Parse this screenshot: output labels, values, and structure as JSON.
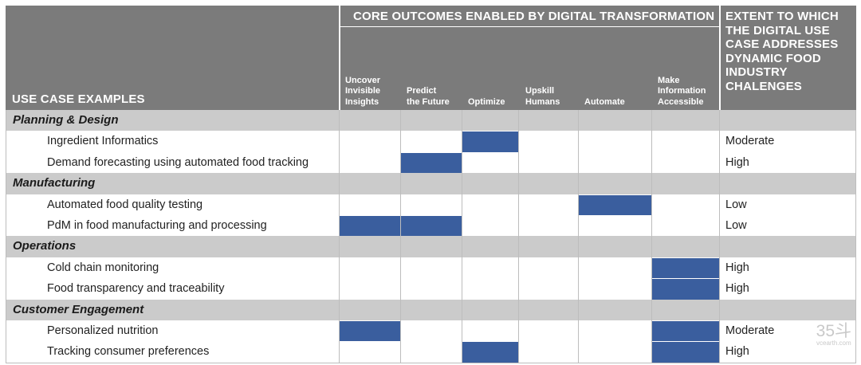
{
  "header": {
    "use_case_col": "USE CASE EXAMPLES",
    "core_title": "CORE OUTCOMES ENABLED BY DIGITAL TRANSFORMATION",
    "extent_title": [
      "EXTENT TO WHICH",
      "THE DIGITAL USE",
      "CASE ADDRESSES",
      "DYNAMIC FOOD",
      "INDUSTRY",
      "CHALENGES"
    ],
    "outcomes": [
      [
        "Uncover",
        "Invisible",
        "Insights"
      ],
      [
        "Predict",
        "the Future"
      ],
      [
        "Optimize"
      ],
      [
        "Upskill",
        "Humans"
      ],
      [
        "Automate"
      ],
      [
        "Make",
        "Information",
        "Accessible"
      ]
    ]
  },
  "sections": [
    {
      "title": "Planning & Design",
      "rows": [
        {
          "label": "Ingredient Informatics",
          "outcomes": [
            false,
            false,
            true,
            false,
            false,
            false
          ],
          "extent": "Moderate"
        },
        {
          "label": "Demand forecasting using automated food tracking",
          "outcomes": [
            false,
            true,
            false,
            false,
            false,
            false
          ],
          "extent": "High"
        }
      ]
    },
    {
      "title": "Manufacturing",
      "rows": [
        {
          "label": "Automated food quality testing",
          "outcomes": [
            false,
            false,
            false,
            false,
            true,
            false
          ],
          "extent": "Low"
        },
        {
          "label": "PdM in food manufacturing and processing",
          "outcomes": [
            true,
            true,
            false,
            false,
            false,
            false
          ],
          "extent": "Low"
        }
      ]
    },
    {
      "title": "Operations",
      "rows": [
        {
          "label": "Cold chain monitoring",
          "outcomes": [
            false,
            false,
            false,
            false,
            false,
            true
          ],
          "extent": "High"
        },
        {
          "label": "Food transparency and traceability",
          "outcomes": [
            false,
            false,
            false,
            false,
            false,
            true
          ],
          "extent": "High"
        }
      ]
    },
    {
      "title": "Customer Engagement",
      "rows": [
        {
          "label": "Personalized nutrition",
          "outcomes": [
            true,
            false,
            false,
            false,
            false,
            true
          ],
          "extent": "Moderate"
        },
        {
          "label": "Tracking consumer preferences",
          "outcomes": [
            false,
            false,
            true,
            false,
            false,
            true
          ],
          "extent": "High"
        }
      ]
    }
  ],
  "colors": {
    "header_bg": "#7b7b7b",
    "section_bg": "#cbcbcb",
    "fill": "#3a5e9e"
  },
  "watermark": {
    "top": "35斗",
    "bottom": "vcearth.com"
  }
}
